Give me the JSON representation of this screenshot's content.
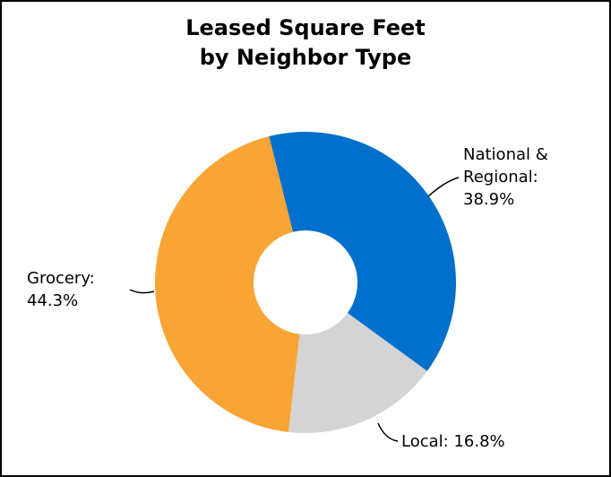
{
  "chart_data": {
    "type": "donut",
    "title": [
      "Leased Square Feet",
      "by Neighbor Type"
    ],
    "categories": [
      "National & Regional:",
      "Local:",
      "Grocery:"
    ],
    "values": [
      38.9,
      16.8,
      44.3
    ],
    "value_labels": [
      "38.9%",
      "16.8%",
      "44.3%"
    ],
    "colors": [
      "#0070cc",
      "#d4d4d4",
      "#f8a535"
    ]
  }
}
